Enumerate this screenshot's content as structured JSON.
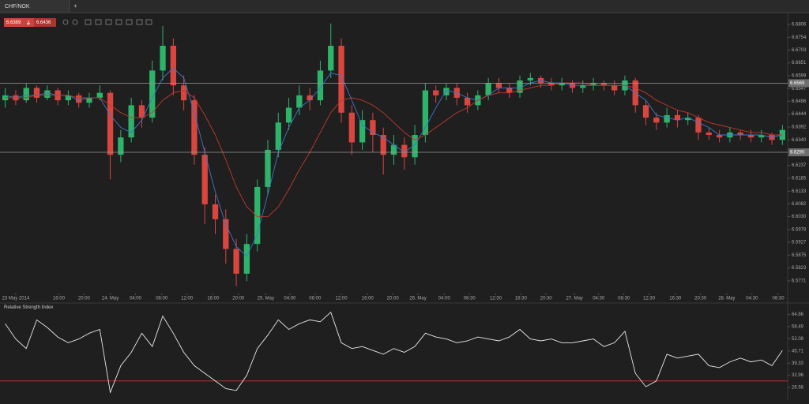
{
  "tab": {
    "label": "CHF/NOK",
    "add": "+"
  },
  "quote": {
    "bid": 6.6389,
    "ask": 6.6436
  },
  "chart_data": [
    {
      "type": "candlestick",
      "open": [
        6.65,
        6.652,
        6.65,
        6.655,
        6.651,
        6.654,
        6.65,
        6.652,
        6.649,
        6.651,
        6.653,
        6.628,
        6.635,
        6.648,
        6.643,
        6.662,
        6.672,
        6.656,
        6.65,
        6.628,
        6.608,
        6.602,
        6.59,
        6.58,
        6.592,
        6.615,
        6.63,
        6.641,
        6.647,
        6.652,
        6.65,
        6.662,
        6.672,
        6.645,
        6.633,
        6.642,
        6.636,
        6.628,
        6.632,
        6.627,
        6.636,
        6.654,
        6.652,
        6.655,
        6.651,
        6.648,
        6.652,
        6.657,
        6.655,
        6.653,
        6.658,
        6.659,
        6.657,
        6.656,
        6.657,
        6.655,
        6.656,
        6.657,
        6.656,
        6.654,
        6.658,
        6.648,
        6.643,
        6.641,
        6.644,
        6.642,
        6.643,
        6.637,
        6.636,
        6.635,
        6.637,
        6.636,
        6.635,
        6.636,
        6.634
      ],
      "high": [
        6.655,
        6.654,
        6.657,
        6.656,
        6.656,
        6.655,
        6.654,
        6.653,
        6.653,
        6.656,
        6.654,
        6.638,
        6.651,
        6.65,
        6.666,
        6.68,
        6.675,
        6.66,
        6.652,
        6.631,
        6.612,
        6.606,
        6.594,
        6.596,
        6.618,
        6.634,
        6.645,
        6.651,
        6.656,
        6.655,
        6.666,
        6.681,
        6.675,
        6.648,
        6.646,
        6.645,
        6.639,
        6.636,
        6.635,
        6.64,
        6.657,
        6.656,
        6.657,
        6.657,
        6.653,
        6.654,
        6.659,
        6.659,
        6.657,
        6.66,
        6.661,
        6.66,
        6.659,
        6.659,
        6.658,
        6.658,
        6.659,
        6.658,
        6.658,
        6.66,
        6.659,
        6.65,
        6.645,
        6.647,
        6.646,
        6.645,
        6.644,
        6.639,
        6.638,
        6.639,
        6.638,
        6.638,
        6.638,
        6.637,
        6.64
      ],
      "low": [
        6.647,
        6.648,
        6.649,
        6.649,
        6.65,
        6.648,
        6.648,
        6.647,
        6.647,
        6.65,
        6.618,
        6.625,
        6.633,
        6.639,
        6.641,
        6.658,
        6.652,
        6.646,
        6.624,
        6.6,
        6.596,
        6.584,
        6.575,
        6.577,
        6.589,
        6.612,
        6.627,
        6.638,
        6.644,
        6.646,
        6.648,
        6.659,
        6.641,
        6.628,
        6.63,
        6.629,
        6.62,
        6.624,
        6.622,
        6.624,
        6.633,
        6.649,
        6.65,
        6.648,
        6.645,
        6.646,
        6.65,
        6.653,
        6.651,
        6.651,
        6.656,
        6.655,
        6.654,
        6.654,
        6.653,
        6.653,
        6.654,
        6.654,
        6.652,
        6.652,
        6.645,
        6.64,
        6.638,
        6.639,
        6.639,
        6.64,
        6.634,
        6.634,
        6.633,
        6.633,
        6.634,
        6.633,
        6.633,
        6.632,
        6.632
      ],
      "close": [
        6.652,
        6.65,
        6.655,
        6.651,
        6.654,
        6.65,
        6.652,
        6.649,
        6.651,
        6.653,
        6.628,
        6.635,
        6.648,
        6.643,
        6.662,
        6.672,
        6.656,
        6.65,
        6.628,
        6.608,
        6.602,
        6.59,
        6.58,
        6.592,
        6.615,
        6.63,
        6.641,
        6.647,
        6.652,
        6.65,
        6.662,
        6.672,
        6.645,
        6.633,
        6.642,
        6.636,
        6.628,
        6.632,
        6.627,
        6.636,
        6.654,
        6.652,
        6.655,
        6.651,
        6.648,
        6.652,
        6.657,
        6.655,
        6.653,
        6.658,
        6.659,
        6.657,
        6.656,
        6.657,
        6.655,
        6.656,
        6.657,
        6.656,
        6.654,
        6.658,
        6.648,
        6.643,
        6.641,
        6.644,
        6.642,
        6.643,
        6.637,
        6.636,
        6.635,
        6.637,
        6.636,
        6.635,
        6.636,
        6.634,
        6.638
      ],
      "up_color": "#2db36a",
      "down_color": "#d9463f",
      "series": [
        {
          "color": "#3a78c9",
          "values": [
            6.652,
            6.651,
            6.652,
            6.652,
            6.653,
            6.652,
            6.652,
            6.65,
            6.651,
            6.651,
            6.644,
            6.639,
            6.637,
            6.642,
            6.651,
            6.659,
            6.663,
            6.659,
            6.645,
            6.629,
            6.613,
            6.6,
            6.591,
            6.587,
            6.596,
            6.612,
            6.629,
            6.639,
            6.647,
            6.65,
            6.655,
            6.661,
            6.66,
            6.65,
            6.64,
            6.637,
            6.635,
            6.632,
            6.629,
            6.632,
            6.639,
            6.647,
            6.654,
            6.653,
            6.651,
            6.65,
            6.652,
            6.655,
            6.655,
            6.655,
            6.657,
            6.658,
            6.657,
            6.657,
            6.656,
            6.656,
            6.656,
            6.656,
            6.656,
            6.656,
            6.653,
            6.65,
            6.644,
            6.643,
            6.642,
            6.643,
            6.641,
            6.639,
            6.636,
            6.636,
            6.636,
            6.636,
            6.636,
            6.635,
            6.636
          ]
        },
        {
          "color": "#c0392b",
          "values": [
            6.651,
            6.651,
            6.651,
            6.652,
            6.652,
            6.652,
            6.652,
            6.651,
            6.651,
            6.651,
            6.648,
            6.645,
            6.643,
            6.643,
            6.645,
            6.65,
            6.653,
            6.654,
            6.651,
            6.644,
            6.636,
            6.626,
            6.615,
            6.607,
            6.603,
            6.603,
            6.607,
            6.614,
            6.622,
            6.629,
            6.637,
            6.645,
            6.65,
            6.651,
            6.65,
            6.648,
            6.645,
            6.641,
            6.637,
            6.634,
            6.636,
            6.639,
            6.642,
            6.645,
            6.647,
            6.65,
            6.652,
            6.653,
            6.653,
            6.654,
            6.655,
            6.656,
            6.656,
            6.657,
            6.657,
            6.657,
            6.656,
            6.656,
            6.656,
            6.656,
            6.655,
            6.653,
            6.65,
            6.648,
            6.646,
            6.645,
            6.643,
            6.641,
            6.64,
            6.639,
            6.638,
            6.637,
            6.637,
            6.636,
            6.636
          ]
        }
      ],
      "levels": [
        6.6569,
        {
          "value": 6.629,
          "label": "6.6290"
        }
      ],
      "ylim": [
        6.572,
        6.6841
      ],
      "yticks": [
        6.6806,
        6.6754,
        6.6703,
        6.6651,
        6.6599,
        6.6547,
        6.6496,
        6.6444,
        6.6392,
        {
          "value": 6.634,
          "label": "6.6340"
        },
        6.6237,
        6.6185,
        6.6133,
        6.6082,
        {
          "value": 6.603,
          "label": "6.6030"
        },
        6.5978,
        6.5927,
        6.5875,
        6.5823,
        6.5771
      ],
      "xlim": [
        0,
        75
      ],
      "xticks": [
        {
          "value": 1.5,
          "label": "23 May 2014"
        },
        {
          "value": 5.6,
          "label": "16:00"
        },
        {
          "value": 8.0,
          "label": "20:00"
        },
        {
          "value": 10.5,
          "label": "24. May"
        },
        {
          "value": 12.9,
          "label": "04:00"
        },
        {
          "value": 15.4,
          "label": "08:00"
        },
        {
          "value": 17.8,
          "label": "12:00"
        },
        {
          "value": 20.3,
          "label": "16:00"
        },
        {
          "value": 22.7,
          "label": "20:00"
        },
        {
          "value": 25.3,
          "label": "25. May"
        },
        {
          "value": 27.6,
          "label": "04:00"
        },
        {
          "value": 30.0,
          "label": "08:00"
        },
        {
          "value": 32.5,
          "label": "12:00"
        },
        {
          "value": 35.0,
          "label": "16:00"
        },
        {
          "value": 37.4,
          "label": "20:00"
        },
        {
          "value": 39.8,
          "label": "26. May"
        },
        {
          "value": 42.3,
          "label": "04:00"
        },
        {
          "value": 44.7,
          "label": "08:30"
        },
        {
          "value": 47.2,
          "label": "12:30"
        },
        {
          "value": 49.6,
          "label": "16:30"
        },
        {
          "value": 52.0,
          "label": "20:30"
        },
        {
          "value": 54.7,
          "label": "27. May"
        },
        {
          "value": 57.0,
          "label": "04:30"
        },
        {
          "value": 59.4,
          "label": "08:30"
        },
        {
          "value": 61.8,
          "label": "12:30"
        },
        {
          "value": 64.3,
          "label": "16:30"
        },
        {
          "value": 66.7,
          "label": "20:30"
        },
        {
          "value": 69.2,
          "label": "28. May"
        },
        {
          "value": 71.6,
          "label": "04:30"
        },
        {
          "value": 74.1,
          "label": "08:30"
        }
      ]
    },
    {
      "type": "line",
      "title": "Relative Strength Index",
      "color": "#e8e8e8",
      "values": [
        60,
        52,
        47,
        62,
        58,
        53,
        50,
        52,
        55,
        57,
        24,
        38,
        45,
        55,
        48,
        64,
        55,
        45,
        38,
        34,
        30,
        26,
        25,
        33,
        47,
        54,
        62,
        57,
        60,
        62,
        61,
        66,
        50,
        47,
        48,
        46,
        44,
        47,
        45,
        48,
        55,
        53,
        52,
        50,
        51,
        53,
        52,
        51,
        53,
        57,
        52,
        51,
        52,
        50,
        50,
        51,
        52,
        48,
        50,
        56,
        34,
        27,
        30,
        44,
        42,
        43,
        44,
        38,
        37,
        40,
        42,
        40,
        41,
        38,
        46
      ],
      "levels": [
        30
      ],
      "level_color": "#c0392b",
      "ylim": [
        20,
        70
      ],
      "yticks": [
        64.86,
        58.49,
        52.08,
        45.71,
        39.33,
        32.96,
        26.58
      ],
      "xlim": [
        0,
        75
      ]
    }
  ]
}
